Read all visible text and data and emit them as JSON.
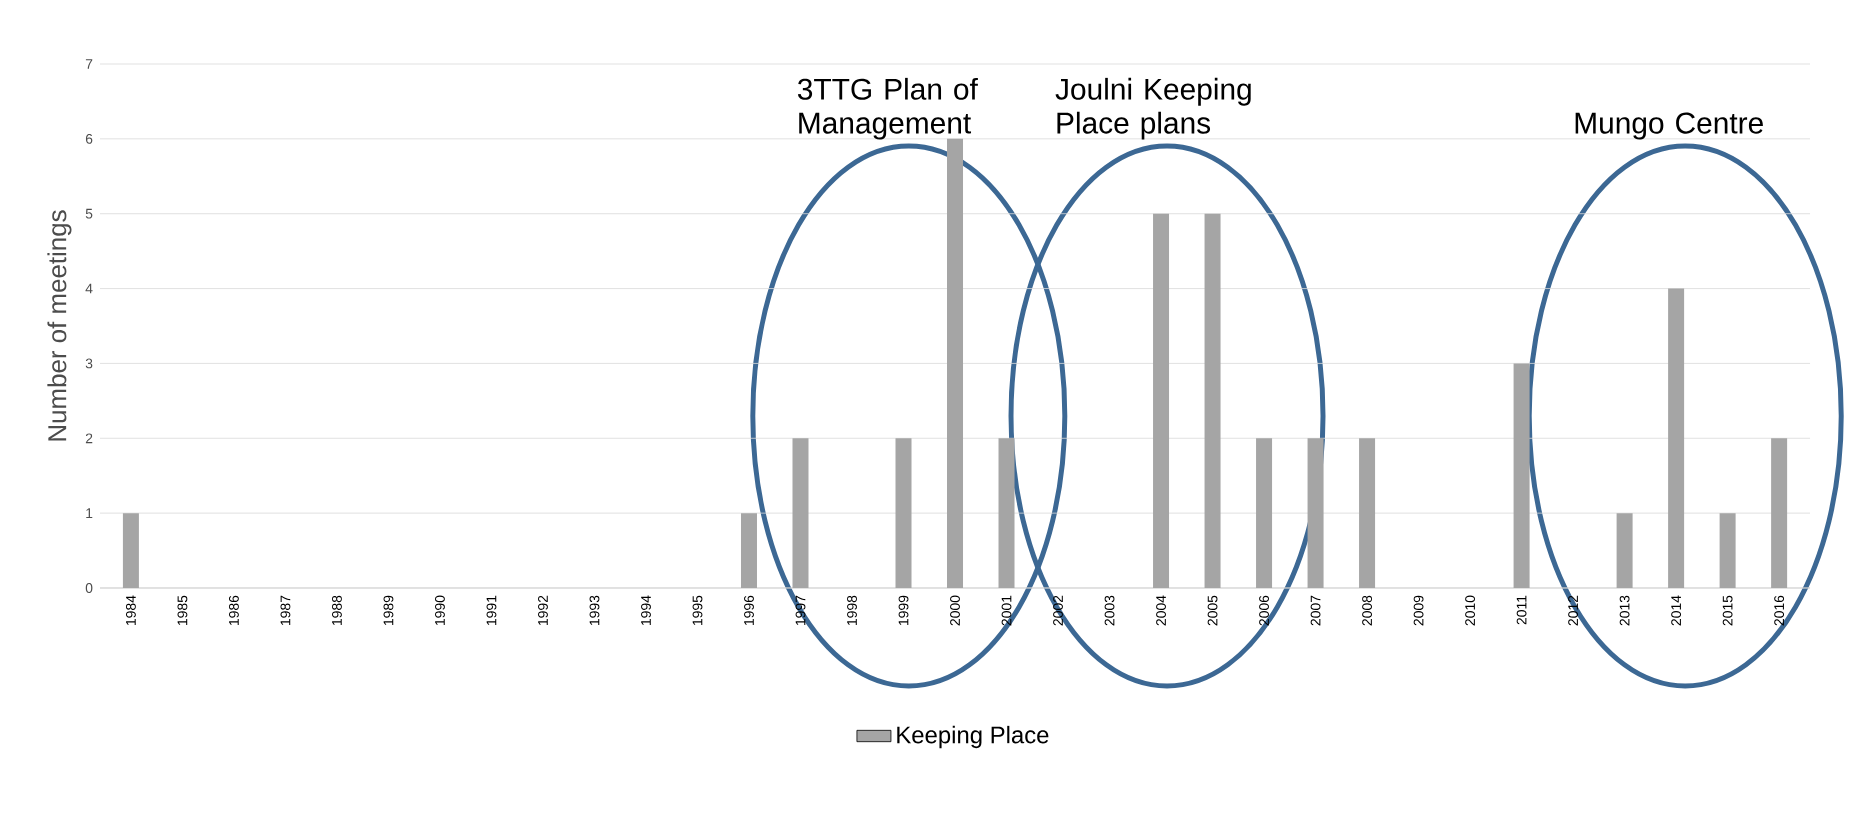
{
  "chart_data": {
    "type": "bar",
    "ylabel": "Number of meetings",
    "categories": [
      "1984",
      "1985",
      "1986",
      "1987",
      "1988",
      "1989",
      "1990",
      "1991",
      "1992",
      "1993",
      "1994",
      "1995",
      "1996",
      "1997",
      "1998",
      "1999",
      "2000",
      "2001",
      "2002",
      "2003",
      "2004",
      "2005",
      "2006",
      "2007",
      "2008",
      "2009",
      "2010",
      "2011",
      "2012",
      "2013",
      "2014",
      "2015",
      "2016"
    ],
    "series": [
      {
        "name": "Keeping Place",
        "color": "#a5a5a5",
        "values": [
          1,
          0,
          0,
          0,
          0,
          0,
          0,
          0,
          0,
          0,
          0,
          0,
          1,
          2,
          0,
          2,
          6,
          2,
          0,
          0,
          5,
          5,
          2,
          2,
          2,
          0,
          0,
          3,
          0,
          1,
          4,
          1,
          2
        ]
      }
    ],
    "ylim": [
      0,
      7
    ],
    "yticks": [
      0,
      1,
      2,
      3,
      4,
      5,
      6,
      7
    ],
    "grid": "y",
    "legend": "bottom",
    "annotations": [
      "3TTG Plan of Management",
      "Joulni Keeping Place plans",
      "Mungo Centre"
    ]
  }
}
